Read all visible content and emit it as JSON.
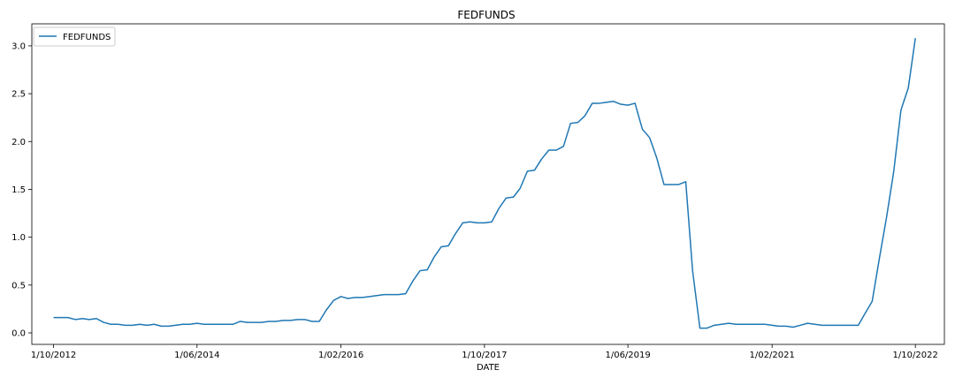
{
  "chart_data": {
    "type": "line",
    "title": "FEDFUNDS",
    "xlabel": "DATE",
    "ylabel": "",
    "x_ticks": [
      "1/10/2012",
      "1/06/2014",
      "1/02/2016",
      "1/10/2017",
      "1/06/2019",
      "1/02/2021",
      "1/10/2022"
    ],
    "y_ticks": [
      "0.0",
      "0.5",
      "1.0",
      "1.5",
      "2.0",
      "2.5",
      "3.0"
    ],
    "ylim": [
      -0.12,
      3.23
    ],
    "xlim": [
      "2012-07-01",
      "2023-02-01"
    ],
    "legend": {
      "position": "top-left",
      "entries": [
        "FEDFUNDS"
      ]
    },
    "grid": false,
    "series": [
      {
        "name": "FEDFUNDS",
        "color": "#1f77b4",
        "points": [
          [
            "2012-10-01",
            0.16
          ],
          [
            "2012-11-01",
            0.16
          ],
          [
            "2012-12-01",
            0.16
          ],
          [
            "2013-01-01",
            0.14
          ],
          [
            "2013-02-01",
            0.15
          ],
          [
            "2013-03-01",
            0.14
          ],
          [
            "2013-04-01",
            0.15
          ],
          [
            "2013-05-01",
            0.11
          ],
          [
            "2013-06-01",
            0.09
          ],
          [
            "2013-07-01",
            0.09
          ],
          [
            "2013-08-01",
            0.08
          ],
          [
            "2013-09-01",
            0.08
          ],
          [
            "2013-10-01",
            0.09
          ],
          [
            "2013-11-01",
            0.08
          ],
          [
            "2013-12-01",
            0.09
          ],
          [
            "2014-01-01",
            0.07
          ],
          [
            "2014-02-01",
            0.07
          ],
          [
            "2014-03-01",
            0.08
          ],
          [
            "2014-04-01",
            0.09
          ],
          [
            "2014-05-01",
            0.09
          ],
          [
            "2014-06-01",
            0.1
          ],
          [
            "2014-07-01",
            0.09
          ],
          [
            "2014-08-01",
            0.09
          ],
          [
            "2014-09-01",
            0.09
          ],
          [
            "2014-10-01",
            0.09
          ],
          [
            "2014-11-01",
            0.09
          ],
          [
            "2014-12-01",
            0.12
          ],
          [
            "2015-01-01",
            0.11
          ],
          [
            "2015-02-01",
            0.11
          ],
          [
            "2015-03-01",
            0.11
          ],
          [
            "2015-04-01",
            0.12
          ],
          [
            "2015-05-01",
            0.12
          ],
          [
            "2015-06-01",
            0.13
          ],
          [
            "2015-07-01",
            0.13
          ],
          [
            "2015-08-01",
            0.14
          ],
          [
            "2015-09-01",
            0.14
          ],
          [
            "2015-10-01",
            0.12
          ],
          [
            "2015-11-01",
            0.12
          ],
          [
            "2015-12-01",
            0.24
          ],
          [
            "2016-01-01",
            0.34
          ],
          [
            "2016-02-01",
            0.38
          ],
          [
            "2016-03-01",
            0.36
          ],
          [
            "2016-04-01",
            0.37
          ],
          [
            "2016-05-01",
            0.37
          ],
          [
            "2016-06-01",
            0.38
          ],
          [
            "2016-07-01",
            0.39
          ],
          [
            "2016-08-01",
            0.4
          ],
          [
            "2016-09-01",
            0.4
          ],
          [
            "2016-10-01",
            0.4
          ],
          [
            "2016-11-01",
            0.41
          ],
          [
            "2016-12-01",
            0.54
          ],
          [
            "2017-01-01",
            0.65
          ],
          [
            "2017-02-01",
            0.66
          ],
          [
            "2017-03-01",
            0.79
          ],
          [
            "2017-04-01",
            0.9
          ],
          [
            "2017-05-01",
            0.91
          ],
          [
            "2017-06-01",
            1.04
          ],
          [
            "2017-07-01",
            1.15
          ],
          [
            "2017-08-01",
            1.16
          ],
          [
            "2017-09-01",
            1.15
          ],
          [
            "2017-10-01",
            1.15
          ],
          [
            "2017-11-01",
            1.16
          ],
          [
            "2017-12-01",
            1.3
          ],
          [
            "2018-01-01",
            1.41
          ],
          [
            "2018-02-01",
            1.42
          ],
          [
            "2018-03-01",
            1.51
          ],
          [
            "2018-04-01",
            1.69
          ],
          [
            "2018-05-01",
            1.7
          ],
          [
            "2018-06-01",
            1.82
          ],
          [
            "2018-07-01",
            1.91
          ],
          [
            "2018-08-01",
            1.91
          ],
          [
            "2018-09-01",
            1.95
          ],
          [
            "2018-10-01",
            2.19
          ],
          [
            "2018-11-01",
            2.2
          ],
          [
            "2018-12-01",
            2.27
          ],
          [
            "2019-01-01",
            2.4
          ],
          [
            "2019-02-01",
            2.4
          ],
          [
            "2019-03-01",
            2.41
          ],
          [
            "2019-04-01",
            2.42
          ],
          [
            "2019-05-01",
            2.39
          ],
          [
            "2019-06-01",
            2.38
          ],
          [
            "2019-07-01",
            2.4
          ],
          [
            "2019-08-01",
            2.13
          ],
          [
            "2019-09-01",
            2.04
          ],
          [
            "2019-10-01",
            1.83
          ],
          [
            "2019-11-01",
            1.55
          ],
          [
            "2019-12-01",
            1.55
          ],
          [
            "2020-01-01",
            1.55
          ],
          [
            "2020-02-01",
            1.58
          ],
          [
            "2020-03-01",
            0.65
          ],
          [
            "2020-04-01",
            0.05
          ],
          [
            "2020-05-01",
            0.05
          ],
          [
            "2020-06-01",
            0.08
          ],
          [
            "2020-07-01",
            0.09
          ],
          [
            "2020-08-01",
            0.1
          ],
          [
            "2020-09-01",
            0.09
          ],
          [
            "2020-10-01",
            0.09
          ],
          [
            "2020-11-01",
            0.09
          ],
          [
            "2020-12-01",
            0.09
          ],
          [
            "2021-01-01",
            0.09
          ],
          [
            "2021-02-01",
            0.08
          ],
          [
            "2021-03-01",
            0.07
          ],
          [
            "2021-04-01",
            0.07
          ],
          [
            "2021-05-01",
            0.06
          ],
          [
            "2021-06-01",
            0.08
          ],
          [
            "2021-07-01",
            0.1
          ],
          [
            "2021-08-01",
            0.09
          ],
          [
            "2021-09-01",
            0.08
          ],
          [
            "2021-10-01",
            0.08
          ],
          [
            "2021-11-01",
            0.08
          ],
          [
            "2021-12-01",
            0.08
          ],
          [
            "2022-01-01",
            0.08
          ],
          [
            "2022-02-01",
            0.08
          ],
          [
            "2022-03-01",
            0.2
          ],
          [
            "2022-04-01",
            0.33
          ],
          [
            "2022-05-01",
            0.77
          ],
          [
            "2022-06-01",
            1.21
          ],
          [
            "2022-07-01",
            1.68
          ],
          [
            "2022-08-01",
            2.33
          ],
          [
            "2022-09-01",
            2.56
          ],
          [
            "2022-10-01",
            3.08
          ]
        ]
      }
    ]
  }
}
